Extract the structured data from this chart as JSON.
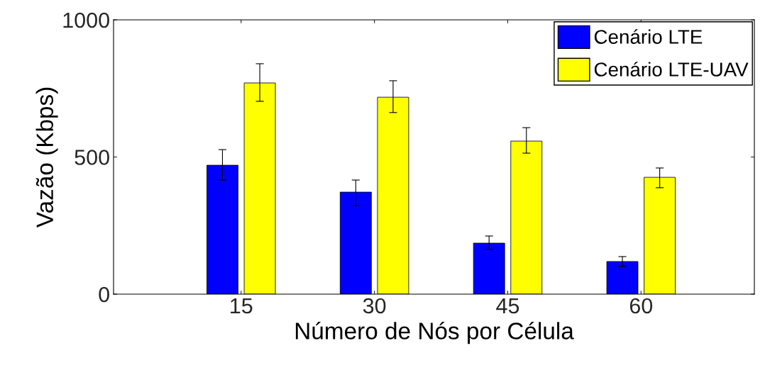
{
  "chart_data": {
    "type": "bar",
    "xlabel": "Número de Nós por Célula",
    "ylabel": "Vazão (Kbps)",
    "categories": [
      "15",
      "30",
      "45",
      "60"
    ],
    "series": [
      {
        "name": "Cenário LTE",
        "color": "#0000ff",
        "values": [
          470,
          372,
          186,
          119
        ],
        "errors": [
          [
            416,
            527
          ],
          [
            323,
            416
          ],
          [
            163,
            212
          ],
          [
            101,
            137
          ]
        ]
      },
      {
        "name": "Cenário LTE-UAV",
        "color": "#ffff00",
        "values": [
          770,
          718,
          558,
          426
        ],
        "errors": [
          [
            703,
            840
          ],
          [
            662,
            778
          ],
          [
            514,
            607
          ],
          [
            388,
            460
          ]
        ]
      }
    ],
    "ylim": [
      0,
      1000
    ],
    "yticks": [
      0,
      500,
      1000
    ],
    "grid": false,
    "legend": "top right"
  }
}
